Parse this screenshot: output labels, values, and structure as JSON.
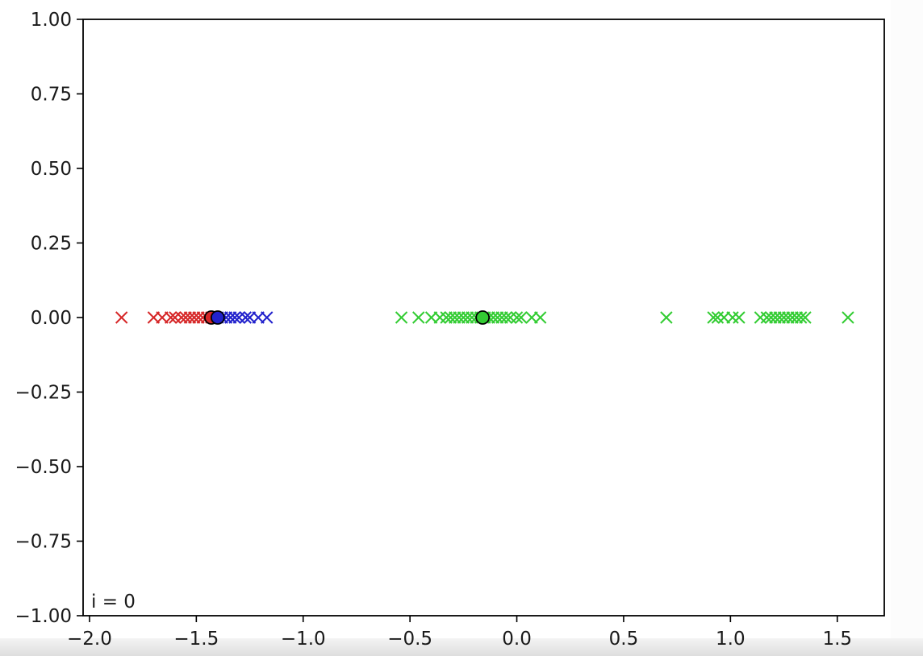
{
  "chart_data": {
    "type": "scatter",
    "title": "",
    "xlabel": "",
    "ylabel": "",
    "xlim": [
      -2.03,
      1.72
    ],
    "ylim": [
      -1.0,
      1.0
    ],
    "xticks": [
      "−2.0",
      "−1.5",
      "−1.0",
      "−0.5",
      "0.0",
      "0.5",
      "1.0",
      "1.5"
    ],
    "xtick_values": [
      -2.0,
      -1.5,
      -1.0,
      -0.5,
      0.0,
      0.5,
      1.0,
      1.5
    ],
    "yticks": [
      "1.00",
      "0.75",
      "0.50",
      "0.25",
      "0.00",
      "−0.25",
      "−0.50",
      "−0.75",
      "−1.00"
    ],
    "ytick_values": [
      1.0,
      0.75,
      0.5,
      0.25,
      0.0,
      -0.25,
      -0.5,
      -0.75,
      -1.0
    ],
    "grid": false,
    "annotation": "i = 0",
    "series": [
      {
        "color": "#d62728",
        "marker": "x",
        "x": [
          -1.85,
          -1.7,
          -1.66,
          -1.62,
          -1.6,
          -1.57,
          -1.55,
          -1.53,
          -1.51,
          -1.49,
          -1.47,
          -1.45,
          -1.43
        ]
      },
      {
        "color": "#2222cc",
        "marker": "x",
        "x": [
          -1.42,
          -1.4,
          -1.38,
          -1.36,
          -1.34,
          -1.32,
          -1.3,
          -1.27,
          -1.25,
          -1.21,
          -1.17
        ]
      },
      {
        "color": "#33cc33",
        "marker": "x",
        "x": [
          -0.54,
          -0.46,
          -0.4,
          -0.36,
          -0.33,
          -0.31,
          -0.29,
          -0.27,
          -0.25,
          -0.23,
          -0.21,
          -0.19,
          -0.17,
          -0.15,
          -0.13,
          -0.11,
          -0.09,
          -0.07,
          -0.05,
          -0.03,
          0.0,
          0.02,
          0.07,
          0.11,
          0.7,
          0.92,
          0.94,
          0.97,
          1.01,
          1.04,
          1.14,
          1.17,
          1.19,
          1.21,
          1.23,
          1.25,
          1.27,
          1.29,
          1.31,
          1.33,
          1.35,
          1.55
        ]
      }
    ],
    "centroids": [
      {
        "x": -1.43,
        "y": 0.0,
        "color": "#d62728"
      },
      {
        "x": -1.4,
        "y": 0.0,
        "color": "#2222cc"
      },
      {
        "x": -0.16,
        "y": 0.0,
        "color": "#33cc33"
      }
    ]
  }
}
